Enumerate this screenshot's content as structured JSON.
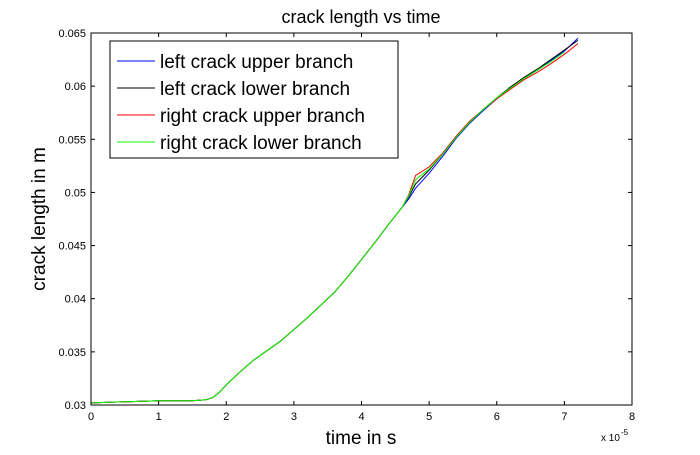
{
  "chart_data": {
    "type": "line",
    "title": "crack length vs time",
    "xlabel": "time in s",
    "ylabel": "crack length in m",
    "x_multiplier": {
      "base": "x 10",
      "exponent": "-5"
    },
    "xlim": [
      0,
      8
    ],
    "ylim": [
      0.03,
      0.065
    ],
    "x_ticks": [
      "0",
      "1",
      "2",
      "3",
      "4",
      "5",
      "6",
      "7",
      "8"
    ],
    "y_ticks": [
      "0.03",
      "0.035",
      "0.04",
      "0.045",
      "0.05",
      "0.055",
      "0.06",
      "0.065"
    ],
    "grid": false,
    "legend_position": "top-left",
    "series": [
      {
        "name": "left crack upper branch",
        "color": "#0000ff",
        "x": [
          0,
          0.5,
          1.0,
          1.5,
          1.7,
          1.8,
          1.9,
          2.0,
          2.2,
          2.4,
          2.6,
          2.8,
          3.0,
          3.2,
          3.4,
          3.6,
          3.8,
          4.0,
          4.2,
          4.4,
          4.6,
          4.7,
          4.8,
          5.0,
          5.2,
          5.4,
          5.6,
          5.8,
          6.0,
          6.2,
          6.4,
          6.6,
          6.8,
          7.0,
          7.2
        ],
        "y": [
          0.0302,
          0.0303,
          0.0304,
          0.0304,
          0.0305,
          0.0307,
          0.0312,
          0.0319,
          0.0331,
          0.0342,
          0.0351,
          0.036,
          0.0371,
          0.0382,
          0.0394,
          0.0406,
          0.0421,
          0.0437,
          0.0453,
          0.047,
          0.0486,
          0.0494,
          0.0504,
          0.0518,
          0.0534,
          0.0551,
          0.0565,
          0.0577,
          0.0588,
          0.0598,
          0.0607,
          0.0615,
          0.0624,
          0.0633,
          0.0645
        ]
      },
      {
        "name": "left crack lower branch",
        "color": "#000000",
        "x": [
          0,
          0.5,
          1.0,
          1.5,
          1.7,
          1.8,
          1.9,
          2.0,
          2.2,
          2.4,
          2.6,
          2.8,
          3.0,
          3.2,
          3.4,
          3.6,
          3.8,
          4.0,
          4.2,
          4.4,
          4.6,
          4.7,
          4.8,
          5.0,
          5.2,
          5.4,
          5.6,
          5.8,
          6.0,
          6.2,
          6.4,
          6.6,
          6.8,
          7.0,
          7.2
        ],
        "y": [
          0.0302,
          0.0303,
          0.0304,
          0.0304,
          0.0305,
          0.0307,
          0.0312,
          0.0319,
          0.0331,
          0.0342,
          0.0351,
          0.036,
          0.0371,
          0.0382,
          0.0394,
          0.0406,
          0.0421,
          0.0437,
          0.0453,
          0.047,
          0.0486,
          0.0496,
          0.0508,
          0.0521,
          0.0536,
          0.0552,
          0.0566,
          0.0578,
          0.0589,
          0.0599,
          0.0608,
          0.0616,
          0.0625,
          0.0634,
          0.0643
        ]
      },
      {
        "name": "right crack upper branch",
        "color": "#ff0000",
        "x": [
          0,
          0.5,
          1.0,
          1.5,
          1.7,
          1.8,
          1.9,
          2.0,
          2.2,
          2.4,
          2.6,
          2.8,
          3.0,
          3.2,
          3.4,
          3.6,
          3.8,
          4.0,
          4.2,
          4.4,
          4.6,
          4.7,
          4.8,
          5.0,
          5.2,
          5.4,
          5.6,
          5.8,
          6.0,
          6.2,
          6.4,
          6.6,
          6.8,
          7.0,
          7.2
        ],
        "y": [
          0.0302,
          0.0303,
          0.0304,
          0.0304,
          0.0305,
          0.0307,
          0.0312,
          0.0319,
          0.0331,
          0.0342,
          0.0351,
          0.036,
          0.0371,
          0.0382,
          0.0394,
          0.0406,
          0.0421,
          0.0437,
          0.0453,
          0.047,
          0.0486,
          0.0498,
          0.0516,
          0.0524,
          0.0537,
          0.0553,
          0.0567,
          0.0578,
          0.0588,
          0.0597,
          0.0606,
          0.0613,
          0.0621,
          0.063,
          0.064
        ]
      },
      {
        "name": "right crack lower branch",
        "color": "#00ff00",
        "x": [
          0,
          0.5,
          1.0,
          1.5,
          1.7,
          1.8,
          1.9,
          2.0,
          2.2,
          2.4,
          2.6,
          2.8,
          3.0,
          3.2,
          3.4,
          3.6,
          3.8,
          4.0,
          4.2,
          4.4,
          4.6,
          4.7,
          4.8,
          5.0,
          5.2,
          5.4,
          5.6,
          5.8,
          6.0,
          6.2,
          6.4,
          6.6,
          6.8,
          7.0
        ],
        "y": [
          0.0302,
          0.0303,
          0.0304,
          0.0304,
          0.0305,
          0.0307,
          0.0312,
          0.0319,
          0.0331,
          0.0342,
          0.0351,
          0.036,
          0.0371,
          0.0382,
          0.0394,
          0.0406,
          0.0421,
          0.0437,
          0.0453,
          0.047,
          0.0486,
          0.0497,
          0.0512,
          0.0522,
          0.0536,
          0.0552,
          0.0566,
          0.0578,
          0.0589,
          0.0598,
          0.0607,
          0.0615,
          0.0623,
          0.0632
        ]
      }
    ]
  }
}
